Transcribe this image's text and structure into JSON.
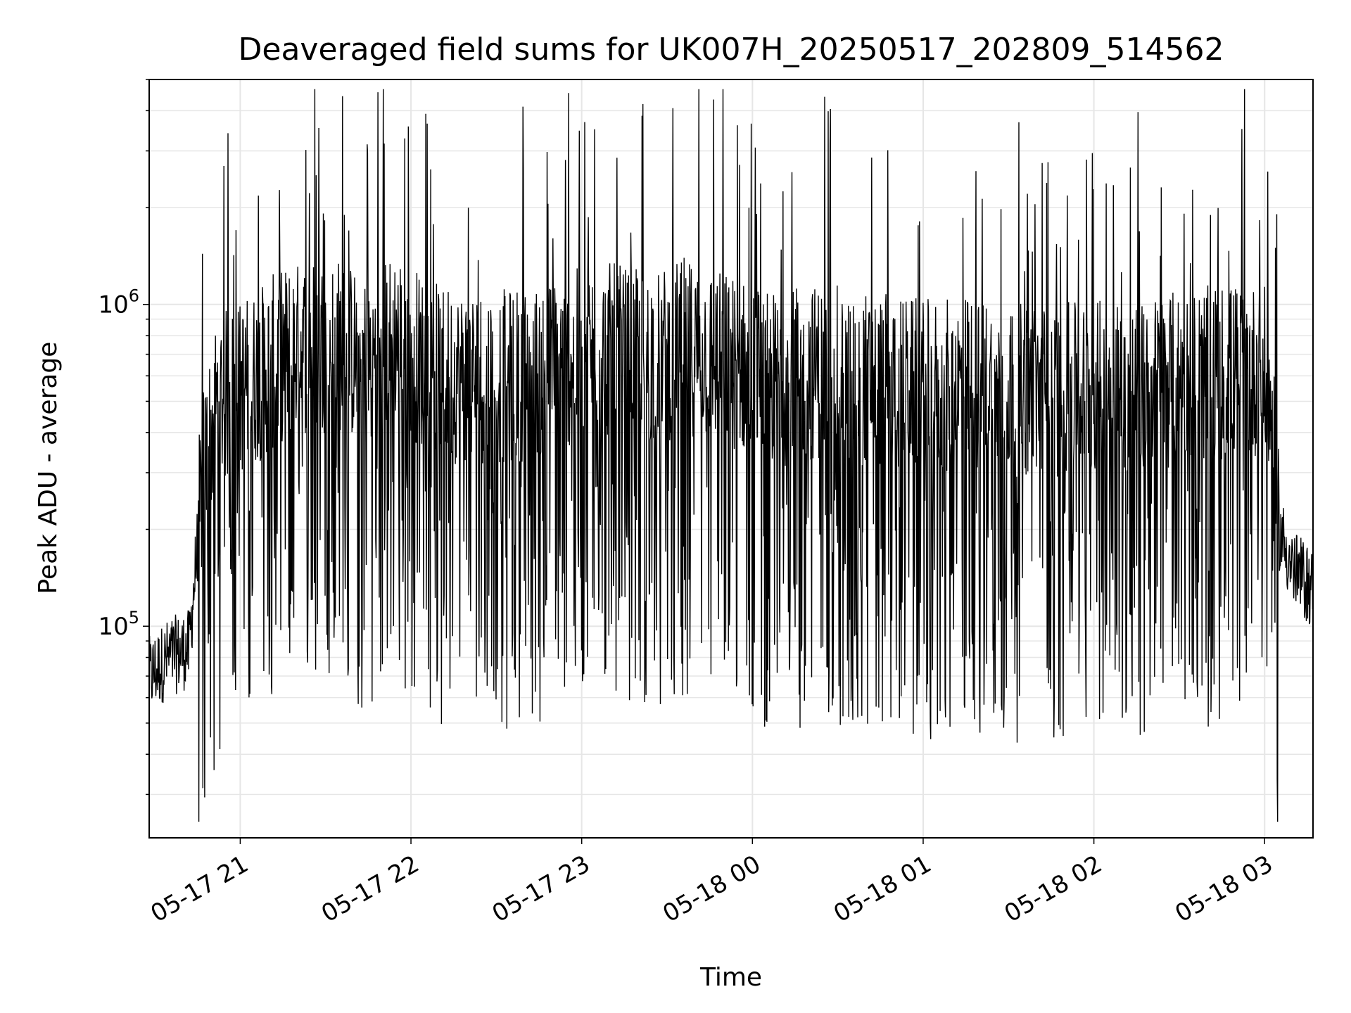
{
  "chart_data": {
    "type": "line",
    "title": "Deaveraged field sums for UK007H_20250517_202809_514562",
    "xlabel": "Time",
    "ylabel": "Peak ADU - average",
    "yscale": "log",
    "ylim": [
      22000,
      5000000
    ],
    "xlim": [
      "05-17 20:28",
      "05-18 03:17"
    ],
    "x_ticks": [
      "05-17 21",
      "05-17 22",
      "05-17 23",
      "05-18 00",
      "05-18 01",
      "05-18 02",
      "05-18 03"
    ],
    "y_ticks": [
      {
        "base": "10",
        "exp": "5",
        "value": 100000
      },
      {
        "base": "10",
        "exp": "6",
        "value": 1000000
      }
    ],
    "grid": true,
    "line_color": "#000000",
    "grid_color": "#e6e6e6",
    "series": [
      {
        "x": [
          "05-17 20:28",
          "05-17 20:35",
          "05-17 20:42",
          "05-17 20:47",
          "05-17 20:52",
          "05-17 21:00",
          "05-17 21:06",
          "05-17 21:15",
          "05-17 21:25",
          "05-17 21:35",
          "05-17 21:45",
          "05-17 21:55",
          "05-17 22:05",
          "05-17 22:15",
          "05-17 22:25",
          "05-17 22:35",
          "05-17 22:45",
          "05-17 22:52",
          "05-17 23:00",
          "05-17 23:10",
          "05-17 23:20",
          "05-17 23:30",
          "05-17 23:35",
          "05-17 23:45",
          "05-17 23:55",
          "05-18 00:05",
          "05-18 00:09",
          "05-18 00:15",
          "05-18 00:25",
          "05-18 00:35",
          "05-18 00:45",
          "05-18 00:55",
          "05-18 01:05",
          "05-18 01:15",
          "05-18 01:25",
          "05-18 01:35",
          "05-18 01:45",
          "05-18 01:55",
          "05-18 02:05",
          "05-18 02:15",
          "05-18 02:25",
          "05-18 02:35",
          "05-18 02:45",
          "05-18 02:55",
          "05-18 03:01",
          "05-18 03:05",
          "05-18 03:10",
          "05-18 03:17"
        ],
        "y": [
          70000,
          80000,
          85000,
          300000,
          500000,
          550000,
          600000,
          700000,
          750000,
          750000,
          650000,
          800000,
          650000,
          600000,
          600000,
          600000,
          620000,
          650000,
          700000,
          720000,
          680000,
          700000,
          750000,
          700000,
          650000,
          600000,
          580000,
          600000,
          620000,
          600000,
          580000,
          560000,
          550000,
          560000,
          560000,
          540000,
          540000,
          540000,
          560000,
          560000,
          580000,
          600000,
          620000,
          620000,
          600000,
          200000,
          150000,
          130000
        ]
      }
    ]
  }
}
